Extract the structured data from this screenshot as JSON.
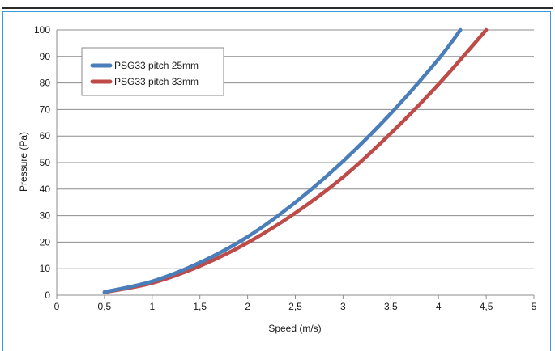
{
  "chart_data": {
    "type": "line",
    "xlabel": "Speed (m/s)",
    "ylabel": "Pressure (Pa)",
    "xlim": [
      0,
      5
    ],
    "ylim": [
      0,
      100
    ],
    "x_ticks": [
      "0",
      "0,5",
      "1",
      "1,5",
      "2",
      "2,5",
      "3",
      "3,5",
      "4",
      "4,5",
      "5"
    ],
    "y_ticks": [
      "0",
      "10",
      "20",
      "30",
      "40",
      "50",
      "60",
      "70",
      "80",
      "90",
      "100"
    ],
    "grid": "horizontal",
    "legend_position": "top-left",
    "series": [
      {
        "name": "PSG33 pitch 25mm",
        "color": "#4a7ebb",
        "x": [
          0.5,
          1.0,
          1.5,
          2.0,
          2.5,
          3.0,
          3.5,
          4.0,
          4.23
        ],
        "y": [
          1.2,
          5.2,
          12.3,
          22,
          35,
          50.5,
          68.5,
          89,
          100
        ]
      },
      {
        "name": "PSG33 pitch 33mm",
        "color": "#be4b48",
        "x": [
          0.5,
          1.0,
          1.5,
          2.0,
          2.5,
          3.0,
          3.5,
          4.0,
          4.5
        ],
        "y": [
          1.1,
          4.6,
          11,
          19.8,
          31,
          44.5,
          61,
          79.5,
          100
        ]
      }
    ]
  }
}
